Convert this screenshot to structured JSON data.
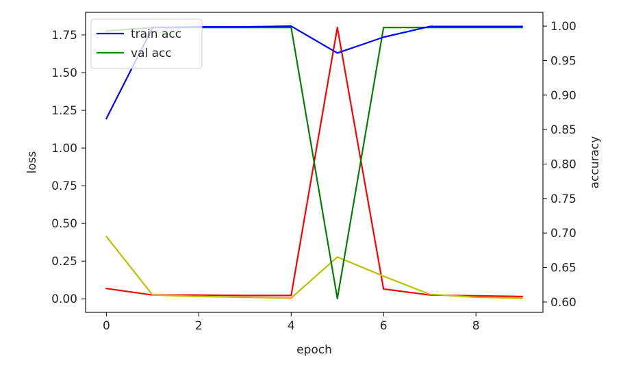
{
  "chart_data": {
    "type": "line",
    "xlabel": "epoch",
    "ylabel_left": "loss",
    "ylabel_right": "accuracy",
    "x": [
      0,
      1,
      2,
      3,
      4,
      5,
      6,
      7,
      8,
      9
    ],
    "xlim": [
      -0.45,
      9.45
    ],
    "xticks": [
      0,
      2,
      4,
      6,
      8
    ],
    "ylim_left": [
      -0.09,
      1.9
    ],
    "yticks_left": [
      "0.00",
      "0.25",
      "0.50",
      "0.75",
      "1.00",
      "1.25",
      "1.50",
      "1.75"
    ],
    "ylim_right": [
      0.585,
      1.02
    ],
    "yticks_right": [
      "0.60",
      "0.65",
      "0.70",
      "0.75",
      "0.80",
      "0.85",
      "0.90",
      "0.95",
      "1.00"
    ],
    "grid": false,
    "legend_placement": "upper-left",
    "series": [
      {
        "name": "train acc",
        "axis": "right",
        "color": "#0000ff",
        "in_legend": true,
        "values": [
          0.866,
          0.998,
          0.999,
          0.999,
          1.0,
          0.961,
          0.984,
          0.9995,
          0.9995,
          0.9995
        ]
      },
      {
        "name": "val acc",
        "axis": "right",
        "color": "#008000",
        "in_legend": true,
        "values": [
          0.993,
          0.998,
          0.998,
          0.998,
          0.998,
          0.605,
          0.998,
          0.998,
          0.998,
          0.998
        ]
      },
      {
        "axis": "left",
        "color": "#ff0000",
        "in_legend": false,
        "values": [
          0.068,
          0.025,
          0.025,
          0.022,
          0.022,
          1.8,
          0.065,
          0.025,
          0.02,
          0.015
        ]
      },
      {
        "axis": "left",
        "color": "#bfbf00",
        "in_legend": false,
        "values": [
          0.413,
          0.025,
          0.015,
          0.01,
          0.005,
          0.277,
          0.15,
          0.03,
          0.01,
          0.005
        ]
      }
    ]
  }
}
